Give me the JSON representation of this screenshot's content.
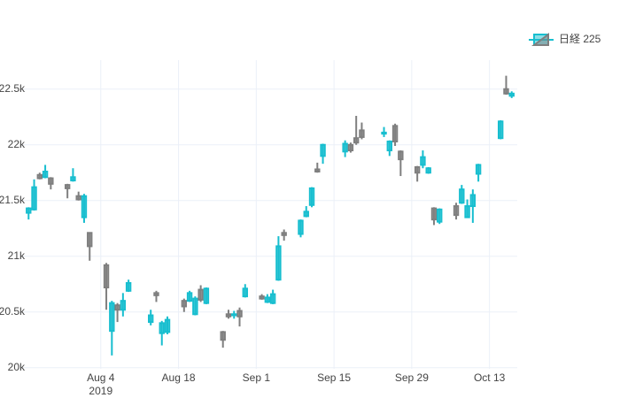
{
  "chart_data": {
    "type": "candlestick",
    "xlim": [
      "2019-07-21",
      "2019-10-18"
    ],
    "xticks": [
      {
        "value": "2019-08-04",
        "label": "Aug 4"
      },
      {
        "value": "2019-08-18",
        "label": "Aug 18"
      },
      {
        "value": "2019-09-01",
        "label": "Sep 1"
      },
      {
        "value": "2019-09-15",
        "label": "Sep 15"
      },
      {
        "value": "2019-09-29",
        "label": "Sep 29"
      },
      {
        "value": "2019-10-13",
        "label": "Oct 13"
      }
    ],
    "x_year_label": "2019",
    "ylim": [
      19990,
      22760
    ],
    "yticks": [
      {
        "value": 20000,
        "label": "20k"
      },
      {
        "value": 20500,
        "label": "20.5k"
      },
      {
        "value": 21000,
        "label": "21k"
      },
      {
        "value": 21500,
        "label": "21.5k"
      },
      {
        "value": 22000,
        "label": "22k"
      },
      {
        "value": 22500,
        "label": "22.5k"
      }
    ],
    "grid": true,
    "legend": "top-right",
    "series": [
      {
        "name": "日経 225",
        "increasing_color": "#17becf",
        "decreasing_color": "#7f7f7f",
        "x": [
          "2019-07-22",
          "2019-07-23",
          "2019-07-24",
          "2019-07-25",
          "2019-07-26",
          "2019-07-29",
          "2019-07-30",
          "2019-07-31",
          "2019-08-01",
          "2019-08-02",
          "2019-08-05",
          "2019-08-06",
          "2019-08-07",
          "2019-08-08",
          "2019-08-09",
          "2019-08-13",
          "2019-08-14",
          "2019-08-15",
          "2019-08-16",
          "2019-08-19",
          "2019-08-20",
          "2019-08-21",
          "2019-08-22",
          "2019-08-23",
          "2019-08-26",
          "2019-08-27",
          "2019-08-28",
          "2019-08-29",
          "2019-08-30",
          "2019-09-02",
          "2019-09-03",
          "2019-09-04",
          "2019-09-05",
          "2019-09-06",
          "2019-09-09",
          "2019-09-10",
          "2019-09-11",
          "2019-09-12",
          "2019-09-13",
          "2019-09-17",
          "2019-09-18",
          "2019-09-19",
          "2019-09-20",
          "2019-09-24",
          "2019-09-25",
          "2019-09-26",
          "2019-09-27",
          "2019-09-30",
          "2019-10-01",
          "2019-10-02",
          "2019-10-03",
          "2019-10-04",
          "2019-10-07",
          "2019-10-08",
          "2019-10-09",
          "2019-10-10",
          "2019-10-11",
          "2019-10-15",
          "2019-10-16",
          "2019-10-17"
        ],
        "open": [
          21390,
          21420,
          21730,
          21710,
          21700,
          21640,
          21680,
          21540,
          21350,
          21210,
          20920,
          20330,
          20560,
          20520,
          20690,
          20410,
          20670,
          20310,
          20320,
          20600,
          20600,
          20480,
          20700,
          20580,
          20320,
          20480,
          20470,
          20510,
          20640,
          20640,
          20590,
          20580,
          20790,
          21210,
          21200,
          21360,
          21460,
          21780,
          21900,
          21940,
          22000,
          22060,
          22130,
          22100,
          21950,
          22170,
          21940,
          21800,
          21820,
          21750,
          21430,
          21310,
          21450,
          21480,
          21350,
          21450,
          21740,
          22060,
          22500,
          22440
        ],
        "high": [
          21440,
          21690,
          21750,
          21820,
          21710,
          21650,
          21790,
          21580,
          21560,
          21210,
          20940,
          20600,
          20580,
          20670,
          20790,
          20520,
          20690,
          20420,
          20460,
          20620,
          20690,
          20640,
          20740,
          20720,
          20330,
          20520,
          20510,
          20540,
          20750,
          20660,
          20660,
          20700,
          21180,
          21240,
          21330,
          21450,
          21620,
          21840,
          22010,
          22040,
          22020,
          22260,
          22200,
          22160,
          22040,
          22190,
          21950,
          21810,
          21950,
          21800,
          21440,
          21430,
          21480,
          21640,
          21510,
          21600,
          21830,
          22220,
          22620,
          22480
        ],
        "low": [
          21330,
          21410,
          21690,
          21700,
          21600,
          21520,
          21670,
          21500,
          21300,
          20960,
          20520,
          20110,
          20410,
          20460,
          20680,
          20380,
          20590,
          20200,
          20300,
          20500,
          20590,
          20470,
          20590,
          20570,
          20180,
          20440,
          20440,
          20370,
          20630,
          20610,
          20580,
          20570,
          20780,
          21140,
          21170,
          21350,
          21440,
          21750,
          21830,
          21890,
          21930,
          22000,
          22050,
          22070,
          21900,
          21990,
          21720,
          21670,
          21790,
          21740,
          21280,
          21290,
          21330,
          21470,
          21350,
          21300,
          21670,
          22050,
          22450,
          22420
        ],
        "close": [
          21430,
          21620,
          21700,
          21760,
          21650,
          21610,
          21710,
          21510,
          21540,
          21090,
          20720,
          20580,
          20520,
          20600,
          20760,
          20470,
          20650,
          20400,
          20430,
          20550,
          20670,
          20620,
          20610,
          20710,
          20250,
          20460,
          20480,
          20460,
          20710,
          20620,
          20630,
          20660,
          21090,
          21190,
          21320,
          21400,
          21610,
          21760,
          22000,
          22010,
          21950,
          22020,
          22070,
          22110,
          22030,
          22030,
          21870,
          21750,
          21890,
          21790,
          21330,
          21420,
          21370,
          21600,
          21450,
          21550,
          21820,
          22210,
          22460,
          22460
        ]
      }
    ]
  }
}
